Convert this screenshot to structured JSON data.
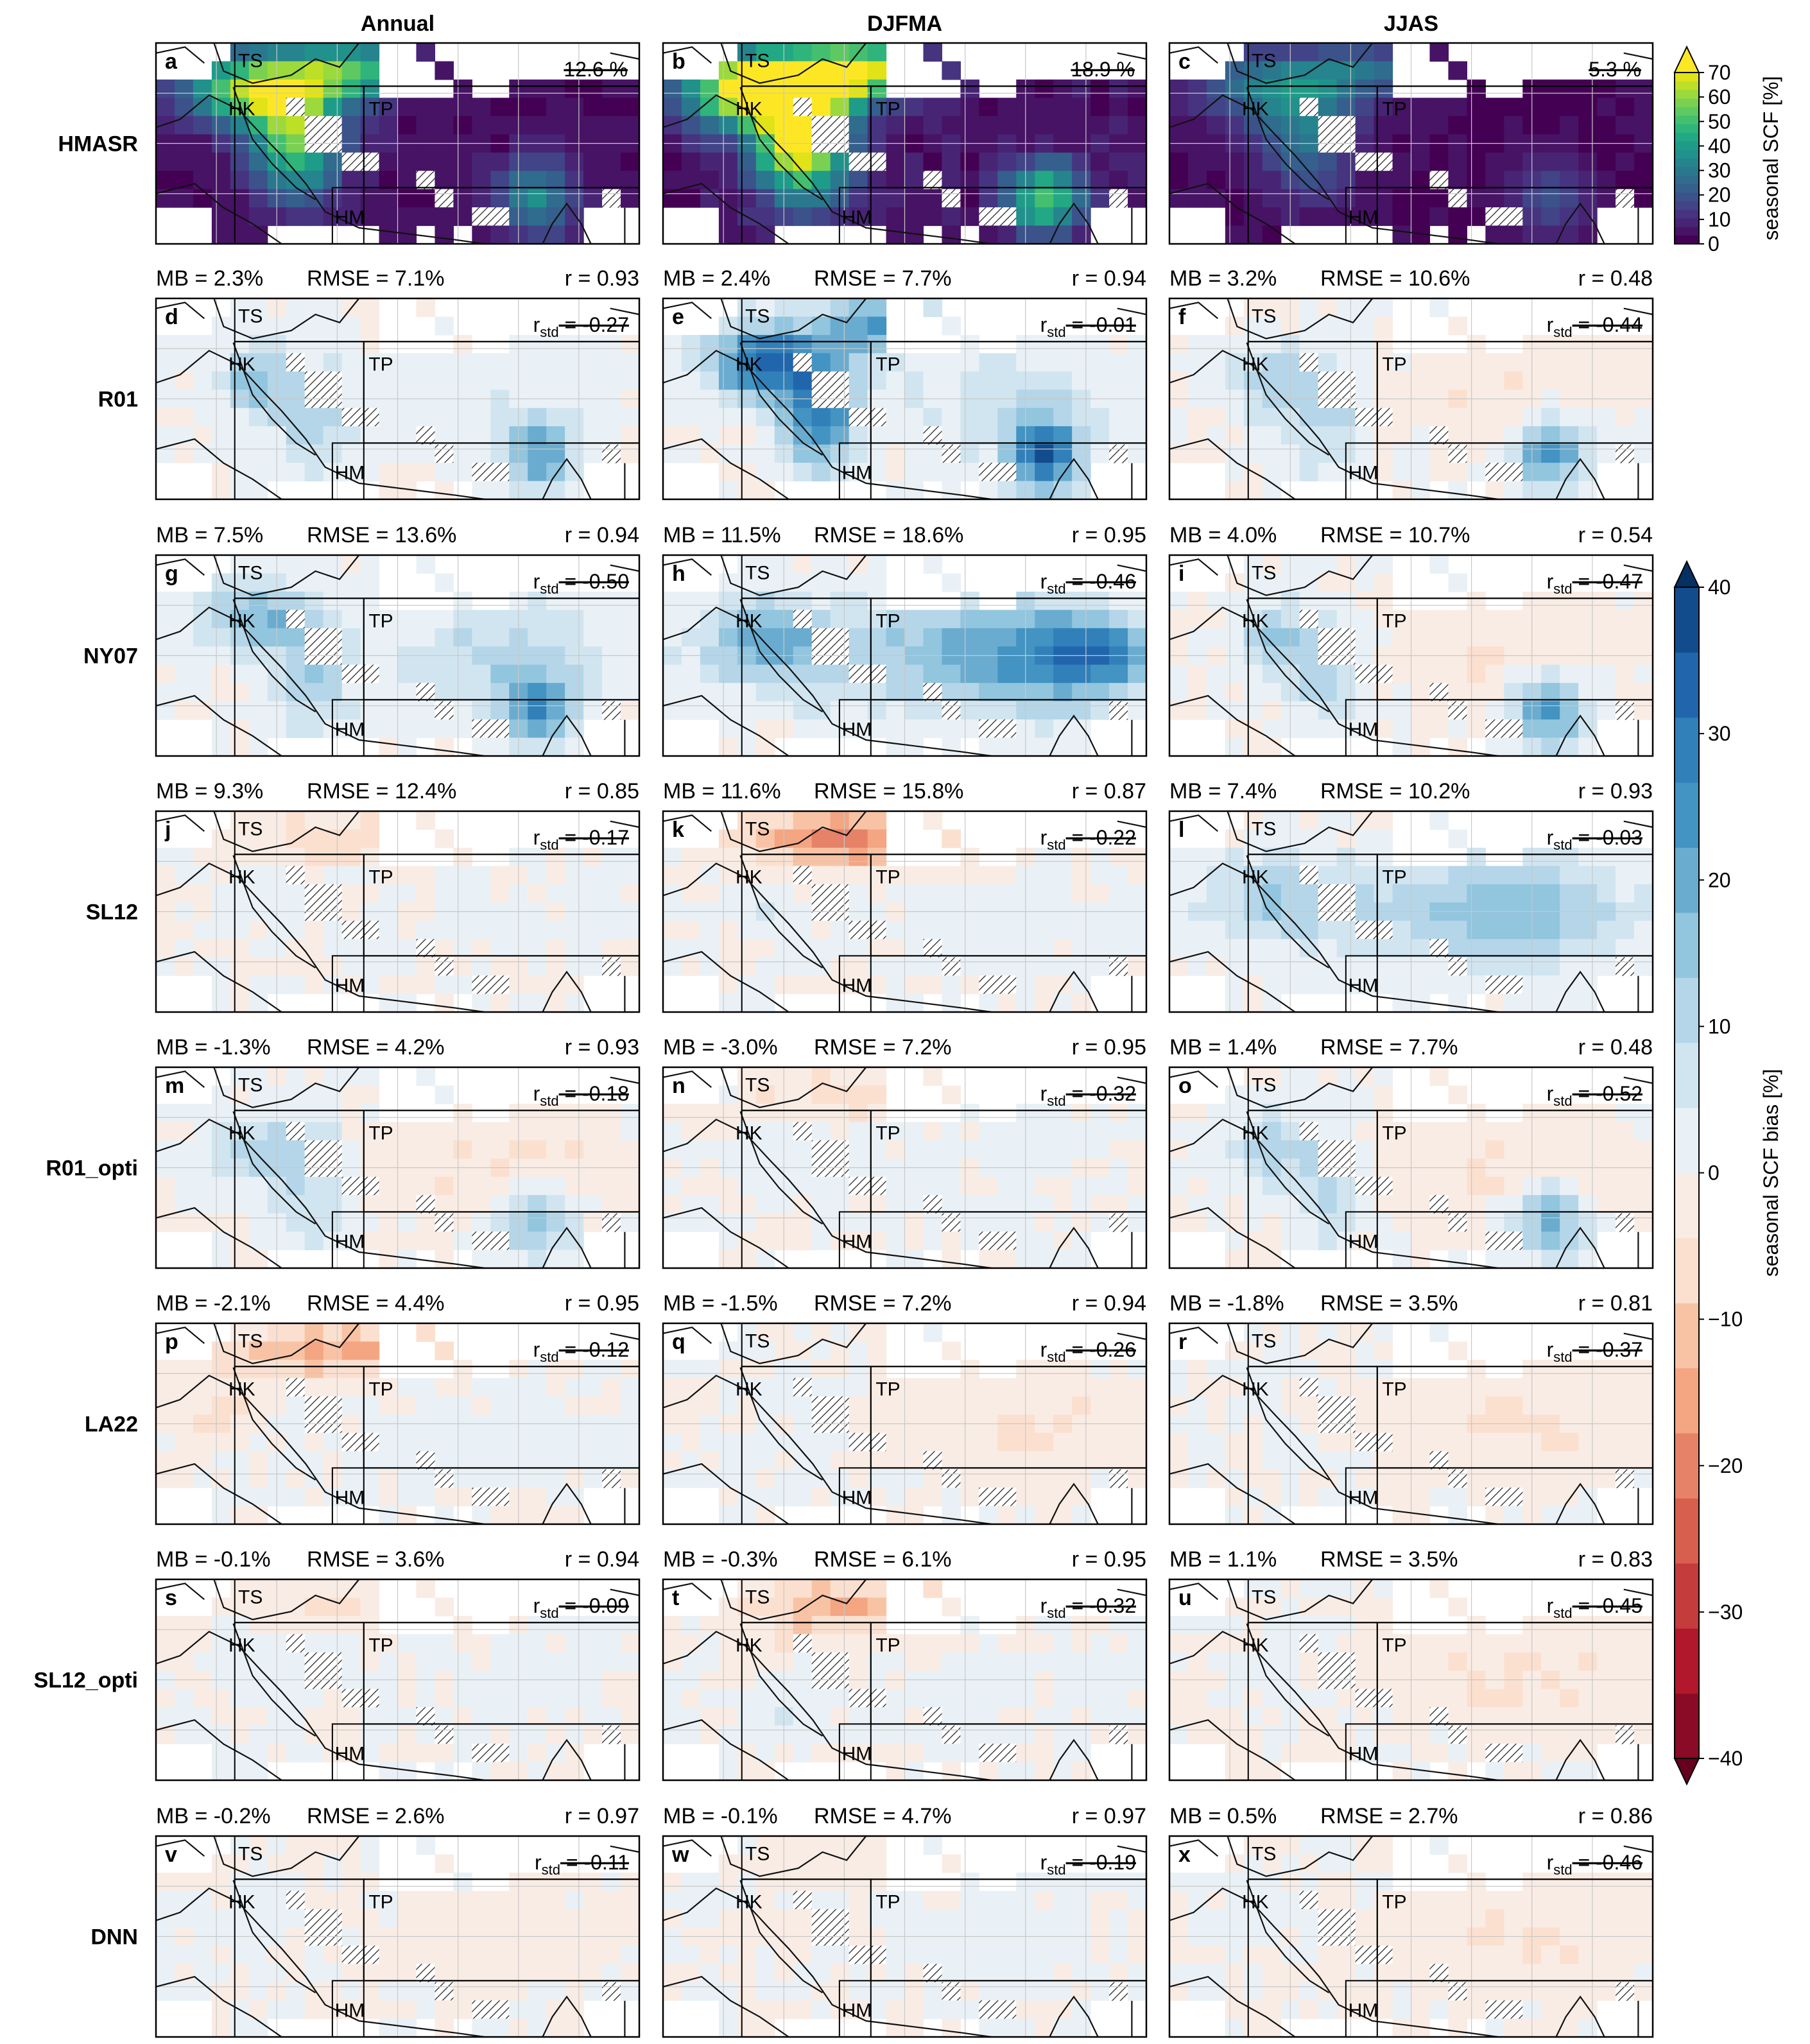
{
  "chart_data": {
    "type": "heatmap",
    "columns": [
      "Annual",
      "DJFMA",
      "JJAS"
    ],
    "rows": [
      "HMASR",
      "R01",
      "NY07",
      "SL12",
      "R01_opti",
      "LA22",
      "SL12_opti",
      "DNN"
    ],
    "panel_letters": [
      "a",
      "b",
      "c",
      "d",
      "e",
      "f",
      "g",
      "h",
      "i",
      "j",
      "k",
      "l",
      "m",
      "n",
      "o",
      "p",
      "q",
      "r",
      "s",
      "t",
      "u",
      "v",
      "w",
      "x"
    ],
    "region_labels": [
      "TS",
      "HK",
      "TP",
      "HM"
    ],
    "hmasr_means": [
      "12.6 %",
      "18.9 %",
      "5.3 %"
    ],
    "stats": [
      [
        {
          "mb": "MB = 2.3%",
          "rmse": "RMSE = 7.1%",
          "r": "r = 0.93",
          "rstd": "= -0.27"
        },
        {
          "mb": "MB = 2.4%",
          "rmse": "RMSE = 7.7%",
          "r": "r = 0.94",
          "rstd": "= -0.01"
        },
        {
          "mb": "MB = 3.2%",
          "rmse": "RMSE = 10.6%",
          "r": "r = 0.48",
          "rstd": "= -0.44"
        }
      ],
      [
        {
          "mb": "MB = 7.5%",
          "rmse": "RMSE = 13.6%",
          "r": "r = 0.94",
          "rstd": "= -0.50"
        },
        {
          "mb": "MB = 11.5%",
          "rmse": "RMSE = 18.6%",
          "r": "r = 0.95",
          "rstd": "= -0.46"
        },
        {
          "mb": "MB = 4.0%",
          "rmse": "RMSE = 10.7%",
          "r": "r = 0.54",
          "rstd": "= -0.47"
        }
      ],
      [
        {
          "mb": "MB = 9.3%",
          "rmse": "RMSE = 12.4%",
          "r": "r = 0.85",
          "rstd": "= -0.17"
        },
        {
          "mb": "MB = 11.6%",
          "rmse": "RMSE = 15.8%",
          "r": "r = 0.87",
          "rstd": "= -0.22"
        },
        {
          "mb": "MB = 7.4%",
          "rmse": "RMSE = 10.2%",
          "r": "r = 0.93",
          "rstd": "= -0.03"
        }
      ],
      [
        {
          "mb": "MB = -1.3%",
          "rmse": "RMSE = 4.2%",
          "r": "r = 0.93",
          "rstd": "= -0.18"
        },
        {
          "mb": "MB = -3.0%",
          "rmse": "RMSE = 7.2%",
          "r": "r = 0.95",
          "rstd": "= -0.32"
        },
        {
          "mb": "MB = 1.4%",
          "rmse": "RMSE = 7.7%",
          "r": "r = 0.48",
          "rstd": "= -0.52"
        }
      ],
      [
        {
          "mb": "MB = -2.1%",
          "rmse": "RMSE = 4.4%",
          "r": "r = 0.95",
          "rstd": "= -0.12"
        },
        {
          "mb": "MB = -1.5%",
          "rmse": "RMSE = 7.2%",
          "r": "r = 0.94",
          "rstd": "= -0.26"
        },
        {
          "mb": "MB = -1.8%",
          "rmse": "RMSE = 3.5%",
          "r": "r = 0.81",
          "rstd": "= -0.37"
        }
      ],
      [
        {
          "mb": "MB = -0.1%",
          "rmse": "RMSE = 3.6%",
          "r": "r = 0.94",
          "rstd": "= -0.09"
        },
        {
          "mb": "MB = -0.3%",
          "rmse": "RMSE = 6.1%",
          "r": "r = 0.95",
          "rstd": "= -0.32"
        },
        {
          "mb": "MB = 1.1%",
          "rmse": "RMSE = 3.5%",
          "r": "r = 0.83",
          "rstd": "= -0.45"
        }
      ],
      [
        {
          "mb": "MB = -0.2%",
          "rmse": "RMSE = 2.6%",
          "r": "r = 0.97",
          "rstd": "= -0.11"
        },
        {
          "mb": "MB = -0.1%",
          "rmse": "RMSE = 4.7%",
          "r": "r = 0.97",
          "rstd": "= -0.19"
        },
        {
          "mb": "MB = 0.5%",
          "rmse": "RMSE = 2.7%",
          "r": "r = 0.86",
          "rstd": "= -0.46"
        }
      ]
    ],
    "rstd_symbol": "r",
    "rstd_subscript": "std",
    "colorbar_scf": {
      "label": "seasonal SCF [%]",
      "ticks": [
        "0",
        "10",
        "20",
        "30",
        "40",
        "50",
        "60",
        "70"
      ],
      "range": [
        0,
        70
      ],
      "extend": "max",
      "colors": [
        "#440154",
        "#471365",
        "#482475",
        "#463480",
        "#414487",
        "#3b528b",
        "#355f8d",
        "#2f6c8e",
        "#2a788e",
        "#25848e",
        "#21918c",
        "#1e9c89",
        "#22a884",
        "#2fb47c",
        "#44bf70",
        "#5ec962",
        "#7ad151",
        "#9bd93c",
        "#bddf26",
        "#dfe318",
        "#fde725"
      ]
    },
    "colorbar_bias": {
      "label": "seasonal SCF bias [%]",
      "ticks": [
        "40",
        "30",
        "20",
        "10",
        "0",
        "−10",
        "−20",
        "−30",
        "−40"
      ],
      "range": [
        -40,
        40
      ],
      "extend": "both",
      "colors": [
        "#67001f",
        "#8a0b25",
        "#b2182b",
        "#c43c3c",
        "#d6604d",
        "#e58268",
        "#f4a582",
        "#f8c3a4",
        "#fbe0d0",
        "#f9ece4",
        "#e9f1f6",
        "#d1e5f0",
        "#b4d6e8",
        "#92c5de",
        "#6aacd0",
        "#4393c3",
        "#3180b9",
        "#2166ac",
        "#134c8c",
        "#053061"
      ]
    }
  }
}
